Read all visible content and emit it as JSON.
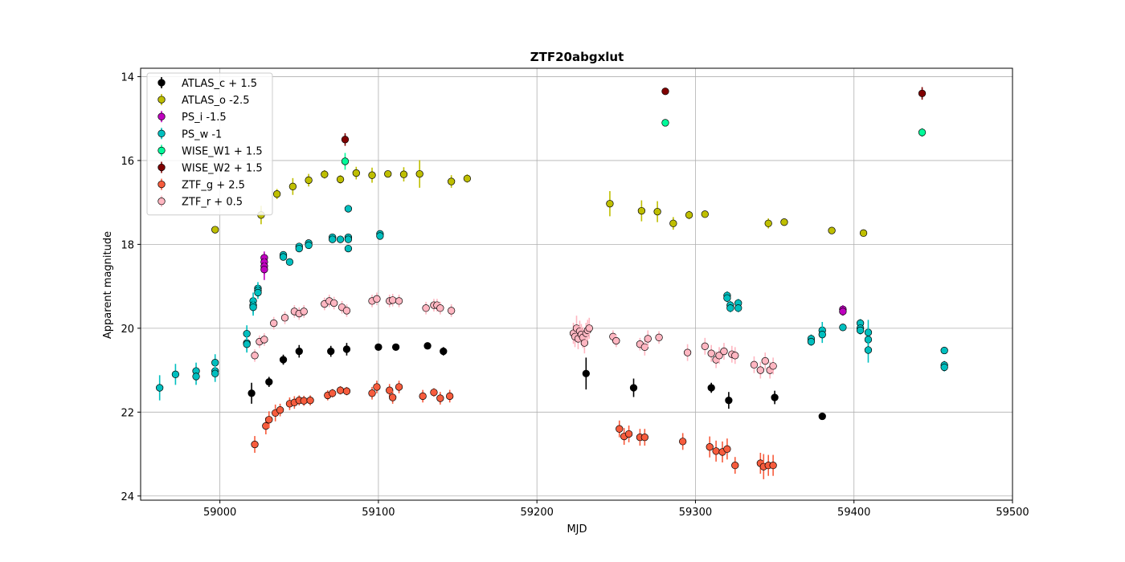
{
  "chart_data": {
    "type": "scatter",
    "title": "ZTF20abgxlut",
    "xlabel": "MJD",
    "ylabel": "Apparent magnitude",
    "xlim": [
      58950,
      59500
    ],
    "ylim": [
      24.1,
      13.8
    ],
    "y_inverted": true,
    "xticks": [
      59000,
      59100,
      59200,
      59300,
      59400,
      59500
    ],
    "yticks": [
      14,
      16,
      18,
      20,
      22,
      24
    ],
    "grid": true,
    "legend_position": "upper-left",
    "series": [
      {
        "name": "ATLAS_c + 1.5",
        "color": "#000000",
        "points": [
          [
            59020,
            21.55,
            0.25
          ],
          [
            59031,
            21.28,
            0.12
          ],
          [
            59040,
            20.75,
            0.12
          ],
          [
            59050,
            20.55,
            0.15
          ],
          [
            59070,
            20.55,
            0.13
          ],
          [
            59080,
            20.5,
            0.15
          ],
          [
            59100,
            20.45,
            0.08
          ],
          [
            59111,
            20.45,
            0.08
          ],
          [
            59131,
            20.42,
            0.08
          ],
          [
            59141,
            20.55,
            0.1
          ],
          [
            59231,
            21.08,
            0.38
          ],
          [
            59261,
            21.42,
            0.22
          ],
          [
            59310,
            21.42,
            0.12
          ],
          [
            59321,
            21.72,
            0.2
          ],
          [
            59350,
            21.65,
            0.16
          ],
          [
            59380,
            22.1,
            0.08
          ]
        ]
      },
      {
        "name": "ATLAS_o -2.5",
        "color": "#bfbf00",
        "points": [
          [
            58997,
            17.65,
            0.05
          ],
          [
            59026,
            17.3,
            0.22
          ],
          [
            59036,
            16.8,
            0.12
          ],
          [
            59046,
            16.62,
            0.2
          ],
          [
            59056,
            16.47,
            0.15
          ],
          [
            59066,
            16.33,
            0.1
          ],
          [
            59076,
            16.45,
            0.1
          ],
          [
            59086,
            16.3,
            0.15
          ],
          [
            59096,
            16.35,
            0.18
          ],
          [
            59106,
            16.32,
            0.08
          ],
          [
            59116,
            16.33,
            0.17
          ],
          [
            59126,
            16.32,
            0.33
          ],
          [
            59146,
            16.5,
            0.15
          ],
          [
            59156,
            16.43,
            0.1
          ],
          [
            59246,
            17.03,
            0.3
          ],
          [
            59266,
            17.2,
            0.25
          ],
          [
            59276,
            17.22,
            0.25
          ],
          [
            59286,
            17.5,
            0.15
          ],
          [
            59296,
            17.3,
            0.1
          ],
          [
            59306,
            17.28,
            0.08
          ],
          [
            59346,
            17.5,
            0.12
          ],
          [
            59356,
            17.47,
            0.06
          ],
          [
            59386,
            17.67,
            0.08
          ],
          [
            59406,
            17.73,
            0.08
          ]
        ]
      },
      {
        "name": "PS_i -1.5",
        "color": "#bf00bf",
        "points": [
          [
            59028,
            18.32,
            0.15
          ],
          [
            59028,
            18.42,
            0.15
          ],
          [
            59028,
            18.52,
            0.2
          ],
          [
            59028,
            18.6,
            0.25
          ],
          [
            59393,
            19.55,
            0.1
          ],
          [
            59393,
            19.6,
            0.1
          ]
        ]
      },
      {
        "name": "PS_w -1",
        "color": "#00bfbf",
        "points": [
          [
            58962,
            21.42,
            0.3
          ],
          [
            58972,
            21.1,
            0.25
          ],
          [
            58985,
            21.02,
            0.2
          ],
          [
            58985,
            21.15,
            0.2
          ],
          [
            58997,
            20.82,
            0.2
          ],
          [
            58997,
            21.02,
            0.2
          ],
          [
            58997,
            21.08,
            0.2
          ],
          [
            59017,
            20.13,
            0.2
          ],
          [
            59017,
            20.35,
            0.2
          ],
          [
            59017,
            20.38,
            0.2
          ],
          [
            59021,
            19.35,
            0.2
          ],
          [
            59021,
            19.45,
            0.2
          ],
          [
            59021,
            19.5,
            0.2
          ],
          [
            59024,
            19.05,
            0.15
          ],
          [
            59024,
            19.1,
            0.15
          ],
          [
            59024,
            19.15,
            0.15
          ],
          [
            59040,
            18.25,
            0.08
          ],
          [
            59040,
            18.3,
            0.08
          ],
          [
            59044,
            18.42,
            0.08
          ],
          [
            59050,
            18.05,
            0.08
          ],
          [
            59050,
            18.1,
            0.08
          ],
          [
            59056,
            17.97,
            0.08
          ],
          [
            59056,
            18.02,
            0.08
          ],
          [
            59071,
            17.83,
            0.08
          ],
          [
            59071,
            17.88,
            0.08
          ],
          [
            59076,
            17.88,
            0.08
          ],
          [
            59081,
            17.15,
            0.08
          ],
          [
            59081,
            17.83,
            0.08
          ],
          [
            59081,
            17.88,
            0.08
          ],
          [
            59081,
            18.1,
            0.08
          ],
          [
            59101,
            17.75,
            0.08
          ],
          [
            59101,
            17.8,
            0.08
          ],
          [
            59320,
            19.22,
            0.1
          ],
          [
            59320,
            19.28,
            0.1
          ],
          [
            59322,
            19.45,
            0.1
          ],
          [
            59322,
            19.52,
            0.1
          ],
          [
            59327,
            19.4,
            0.1
          ],
          [
            59327,
            19.52,
            0.1
          ],
          [
            59373,
            20.25,
            0.1
          ],
          [
            59373,
            20.32,
            0.1
          ],
          [
            59380,
            20.05,
            0.2
          ],
          [
            59380,
            20.15,
            0.2
          ],
          [
            59393,
            19.98,
            0.05
          ],
          [
            59404,
            19.88,
            0.1
          ],
          [
            59404,
            20.0,
            0.1
          ],
          [
            59404,
            20.05,
            0.1
          ],
          [
            59409,
            20.1,
            0.3
          ],
          [
            59409,
            20.27,
            0.3
          ],
          [
            59409,
            20.52,
            0.3
          ],
          [
            59457,
            20.53,
            0.05
          ],
          [
            59457,
            20.88,
            0.1
          ],
          [
            59457,
            20.93,
            0.1
          ]
        ]
      },
      {
        "name": "WISE_W1 + 1.5",
        "color": "#00fa9a",
        "points": [
          [
            59079,
            16.02,
            0.2
          ],
          [
            59281,
            15.1,
            0.05
          ],
          [
            59443,
            15.33,
            0.1
          ]
        ]
      },
      {
        "name": "WISE_W2 + 1.5",
        "color": "#800000",
        "points": [
          [
            59079,
            15.5,
            0.15
          ],
          [
            59281,
            14.35,
            0.05
          ],
          [
            59443,
            14.4,
            0.15
          ]
        ]
      },
      {
        "name": "ZTF_g + 2.5",
        "color": "#f75c3d",
        "points": [
          [
            59022,
            22.77,
            0.2
          ],
          [
            59029,
            22.33,
            0.2
          ],
          [
            59031,
            22.18,
            0.2
          ],
          [
            59035,
            22.02,
            0.2
          ],
          [
            59038,
            21.95,
            0.15
          ],
          [
            59044,
            21.8,
            0.15
          ],
          [
            59047,
            21.77,
            0.15
          ],
          [
            59050,
            21.72,
            0.12
          ],
          [
            59053,
            21.73,
            0.12
          ],
          [
            59057,
            21.72,
            0.12
          ],
          [
            59068,
            21.6,
            0.12
          ],
          [
            59071,
            21.55,
            0.1
          ],
          [
            59076,
            21.48,
            0.1
          ],
          [
            59080,
            21.5,
            0.1
          ],
          [
            59096,
            21.55,
            0.15
          ],
          [
            59099,
            21.4,
            0.15
          ],
          [
            59107,
            21.48,
            0.15
          ],
          [
            59109,
            21.65,
            0.15
          ],
          [
            59113,
            21.4,
            0.15
          ],
          [
            59128,
            21.62,
            0.15
          ],
          [
            59135,
            21.53,
            0.1
          ],
          [
            59139,
            21.67,
            0.15
          ],
          [
            59145,
            21.62,
            0.15
          ],
          [
            59252,
            22.4,
            0.2
          ],
          [
            59255,
            22.58,
            0.2
          ],
          [
            59258,
            22.52,
            0.2
          ],
          [
            59265,
            22.6,
            0.2
          ],
          [
            59268,
            22.6,
            0.2
          ],
          [
            59292,
            22.7,
            0.2
          ],
          [
            59309,
            22.83,
            0.25
          ],
          [
            59313,
            22.93,
            0.25
          ],
          [
            59317,
            22.95,
            0.25
          ],
          [
            59320,
            22.88,
            0.25
          ],
          [
            59325,
            23.27,
            0.2
          ],
          [
            59341,
            23.22,
            0.25
          ],
          [
            59343,
            23.3,
            0.3
          ],
          [
            59346,
            23.27,
            0.25
          ],
          [
            59349,
            23.27,
            0.25
          ]
        ]
      },
      {
        "name": "ZTF_r + 0.5",
        "color": "#ffb6c1",
        "points": [
          [
            59022,
            20.65,
            0.15
          ],
          [
            59025,
            20.32,
            0.15
          ],
          [
            59028,
            20.27,
            0.15
          ],
          [
            59034,
            19.88,
            0.15
          ],
          [
            59041,
            19.75,
            0.15
          ],
          [
            59047,
            19.6,
            0.15
          ],
          [
            59050,
            19.65,
            0.15
          ],
          [
            59053,
            19.6,
            0.15
          ],
          [
            59066,
            19.42,
            0.15
          ],
          [
            59069,
            19.35,
            0.15
          ],
          [
            59072,
            19.4,
            0.15
          ],
          [
            59077,
            19.5,
            0.15
          ],
          [
            59080,
            19.58,
            0.15
          ],
          [
            59096,
            19.35,
            0.15
          ],
          [
            59099,
            19.3,
            0.15
          ],
          [
            59107,
            19.35,
            0.15
          ],
          [
            59109,
            19.33,
            0.15
          ],
          [
            59113,
            19.35,
            0.15
          ],
          [
            59130,
            19.52,
            0.15
          ],
          [
            59135,
            19.45,
            0.15
          ],
          [
            59137,
            19.45,
            0.15
          ],
          [
            59139,
            19.52,
            0.15
          ],
          [
            59146,
            19.58,
            0.15
          ],
          [
            59223,
            20.12,
            0.25
          ],
          [
            59224,
            20.2,
            0.25
          ],
          [
            59225,
            20.0,
            0.3
          ],
          [
            59226,
            20.25,
            0.25
          ],
          [
            59227,
            20.07,
            0.25
          ],
          [
            59228,
            20.15,
            0.25
          ],
          [
            59229,
            20.22,
            0.25
          ],
          [
            59230,
            20.35,
            0.25
          ],
          [
            59231,
            20.12,
            0.25
          ],
          [
            59232,
            20.05,
            0.25
          ],
          [
            59233,
            20.0,
            0.25
          ],
          [
            59248,
            20.2,
            0.15
          ],
          [
            59250,
            20.3,
            0.15
          ],
          [
            59265,
            20.38,
            0.15
          ],
          [
            59268,
            20.45,
            0.2
          ],
          [
            59270,
            20.25,
            0.2
          ],
          [
            59277,
            20.22,
            0.15
          ],
          [
            59295,
            20.58,
            0.2
          ],
          [
            59306,
            20.43,
            0.2
          ],
          [
            59310,
            20.6,
            0.2
          ],
          [
            59313,
            20.75,
            0.2
          ],
          [
            59315,
            20.65,
            0.2
          ],
          [
            59318,
            20.55,
            0.2
          ],
          [
            59323,
            20.62,
            0.2
          ],
          [
            59325,
            20.65,
            0.2
          ],
          [
            59337,
            20.87,
            0.2
          ],
          [
            59341,
            21.0,
            0.2
          ],
          [
            59344,
            20.78,
            0.2
          ],
          [
            59347,
            21.0,
            0.2
          ],
          [
            59349,
            20.9,
            0.2
          ]
        ]
      }
    ]
  }
}
